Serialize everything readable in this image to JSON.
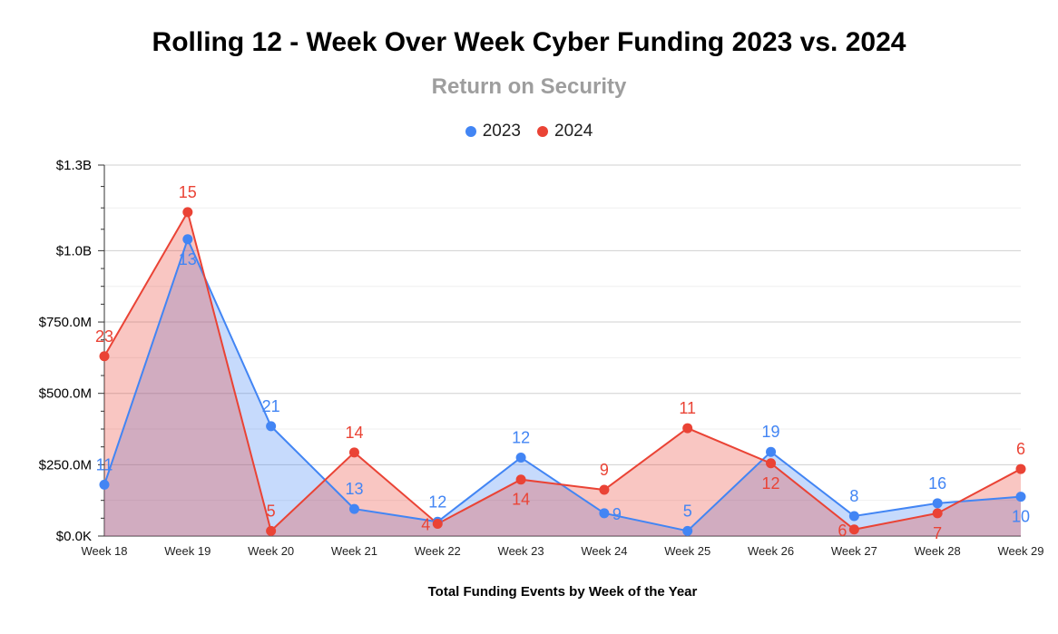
{
  "chart_data": {
    "type": "area",
    "title": "Rolling 12 - Week Over Week Cyber Funding 2023 vs. 2024",
    "subtitle": "Return on Security",
    "xlabel": "Total Funding Events by Week of the Year",
    "ylabel": "",
    "ylim": [
      0,
      1.3
    ],
    "y_unit": "billions USD",
    "yticks": [
      0,
      0.25,
      0.5,
      0.75,
      1.0,
      1.3
    ],
    "ytick_labels": [
      "$0.0K",
      "$250.0M",
      "$500.0M",
      "$750.0M",
      "$1.0B",
      "$1.3B"
    ],
    "grid": true,
    "legend_position": "top",
    "categories": [
      "Week 18",
      "Week 19",
      "Week 20",
      "Week 21",
      "Week 22",
      "Week 23",
      "Week 24",
      "Week 25",
      "Week 26",
      "Week 27",
      "Week 28",
      "Week 29"
    ],
    "series": [
      {
        "name": "2023",
        "color": "#4285f4",
        "fill": "#c6d9f7",
        "values": [
          0.18,
          1.04,
          0.385,
          0.095,
          0.05,
          0.275,
          0.08,
          0.018,
          0.295,
          0.07,
          0.115,
          0.138
        ],
        "labels": [
          "11",
          "13",
          "21",
          "13",
          "12",
          "12",
          "9",
          "5",
          "19",
          "8",
          "16",
          "10"
        ],
        "label_pos": [
          "above",
          "below",
          "above",
          "above",
          "above",
          "above",
          "right",
          "above",
          "above",
          "above",
          "above",
          "below"
        ]
      },
      {
        "name": "2024",
        "color": "#ea4335",
        "fill": "#f5c2bf",
        "values": [
          0.63,
          1.135,
          0.018,
          0.293,
          0.043,
          0.198,
          0.162,
          0.378,
          0.255,
          0.023,
          0.08,
          0.235
        ],
        "labels": [
          "23",
          "15",
          "5",
          "14",
          "4",
          "14",
          "9",
          "11",
          "12",
          "6",
          "7",
          "6"
        ],
        "label_pos": [
          "above",
          "above",
          "above",
          "above",
          "left",
          "below",
          "above",
          "above",
          "below",
          "left",
          "below",
          "above"
        ]
      }
    ]
  }
}
